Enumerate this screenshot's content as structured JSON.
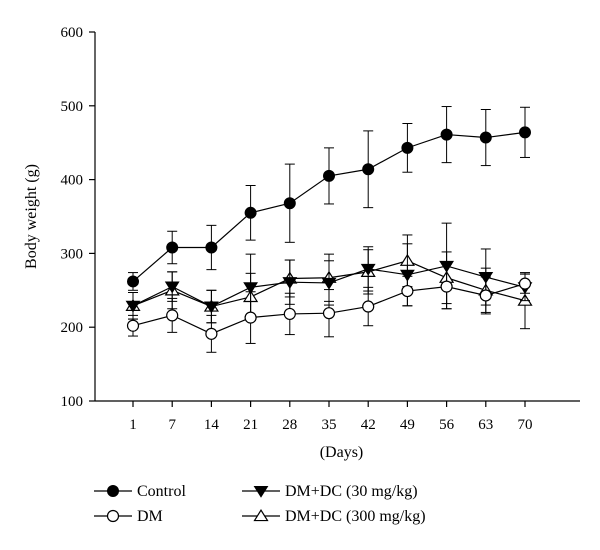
{
  "chart_data": {
    "type": "line",
    "title": "",
    "xlabel": "(Days)",
    "ylabel": "Body weight (g)",
    "ylim": [
      100,
      600
    ],
    "yticks": [
      100,
      200,
      300,
      400,
      500,
      600
    ],
    "categories": [
      "1",
      "7",
      "14",
      "21",
      "28",
      "35",
      "42",
      "49",
      "56",
      "63",
      "70"
    ],
    "grid": false,
    "legend_position": "bottom",
    "series": [
      {
        "name": "Control",
        "marker": "circle-filled",
        "values": [
          262,
          308,
          308,
          355,
          368,
          405,
          414,
          443,
          461,
          457,
          464
        ],
        "errors": [
          12,
          22,
          30,
          37,
          53,
          38,
          52,
          33,
          38,
          38,
          34
        ]
      },
      {
        "name": "DM",
        "marker": "circle-open",
        "values": [
          202,
          216,
          191,
          213,
          218,
          219,
          228,
          249,
          255,
          243,
          259
        ],
        "errors": [
          14,
          23,
          25,
          35,
          28,
          32,
          26,
          20,
          30,
          25,
          13
        ]
      },
      {
        "name": "DM+DC (30 mg/kg)",
        "marker": "triangle-down-filled",
        "values": [
          229,
          255,
          228,
          254,
          261,
          260,
          279,
          271,
          283,
          268,
          254
        ],
        "errors": [
          18,
          20,
          22,
          45,
          30,
          30,
          30,
          42,
          58,
          38,
          18
        ]
      },
      {
        "name": "DM+DC (300 mg/kg)",
        "marker": "triangle-up-open",
        "values": [
          229,
          250,
          228,
          241,
          266,
          267,
          275,
          290,
          267,
          250,
          236
        ],
        "errors": [
          18,
          25,
          22,
          32,
          25,
          32,
          30,
          35,
          35,
          30,
          38
        ]
      }
    ]
  }
}
